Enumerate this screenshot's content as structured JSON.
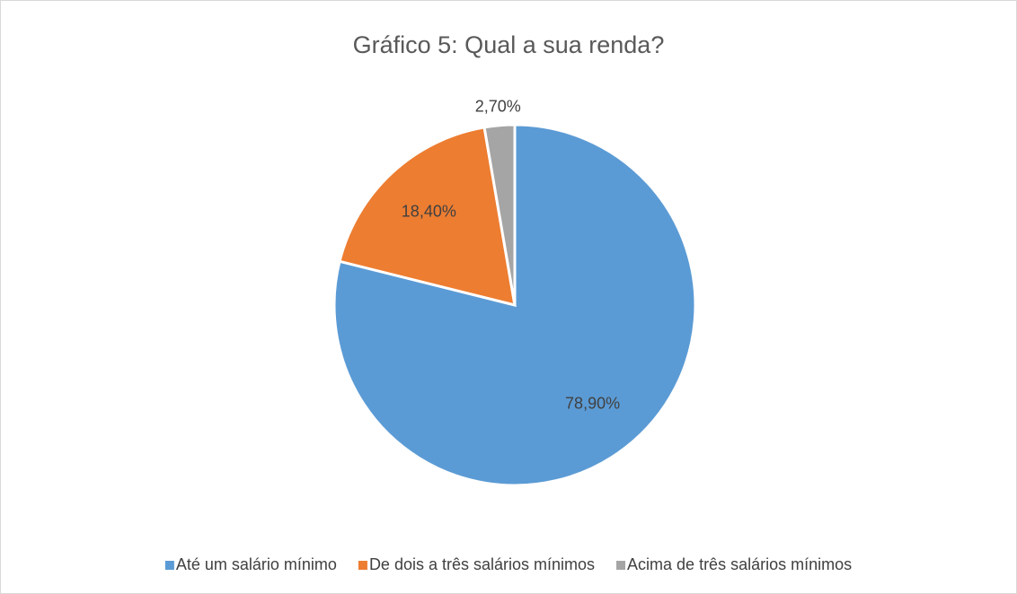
{
  "chart_data": {
    "type": "pie",
    "title": "Gráfico 5: Qual a sua renda?",
    "categories": [
      "Até um salário mínimo",
      "De dois a três salários mínimos",
      "Acima de três salários mínimos"
    ],
    "values": [
      78.9,
      18.4,
      2.7
    ],
    "value_labels": [
      "78,90%",
      "18,40%",
      "2,70%"
    ],
    "colors": [
      "#5b9bd5",
      "#ed7d31",
      "#a5a5a5"
    ],
    "legend": "bottom"
  }
}
